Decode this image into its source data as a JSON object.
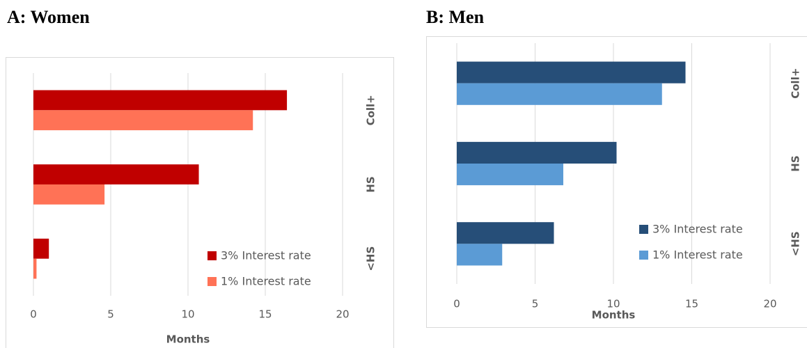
{
  "chart_data": [
    {
      "type": "bar",
      "orientation": "horizontal",
      "title": "A: Women",
      "categories": [
        "Coll+",
        "HS",
        "<HS"
      ],
      "series": [
        {
          "name": "3% Interest rate",
          "color": "#c00000",
          "values": [
            16.4,
            10.7,
            1.0
          ]
        },
        {
          "name": "1% Interest rate",
          "color": "#ff7256",
          "values": [
            14.2,
            4.6,
            0.2
          ]
        }
      ],
      "xlabel": "Months",
      "xlim": [
        0,
        20
      ],
      "xticks": [
        0,
        5,
        10,
        15,
        20
      ],
      "grid": true,
      "legend": "lower right"
    },
    {
      "type": "bar",
      "orientation": "horizontal",
      "title": "B: Men",
      "categories": [
        "Coll+",
        "HS",
        "<HS"
      ],
      "series": [
        {
          "name": "3% Interest rate",
          "color": "#264e78",
          "values": [
            14.6,
            10.2,
            6.2
          ]
        },
        {
          "name": "1% Interest rate",
          "color": "#5b9bd5",
          "values": [
            13.1,
            6.8,
            2.9
          ]
        }
      ],
      "xlabel": "Months",
      "xlim": [
        0,
        20
      ],
      "xticks": [
        0,
        5,
        10,
        15,
        20
      ],
      "grid": true,
      "legend": "lower right"
    }
  ]
}
